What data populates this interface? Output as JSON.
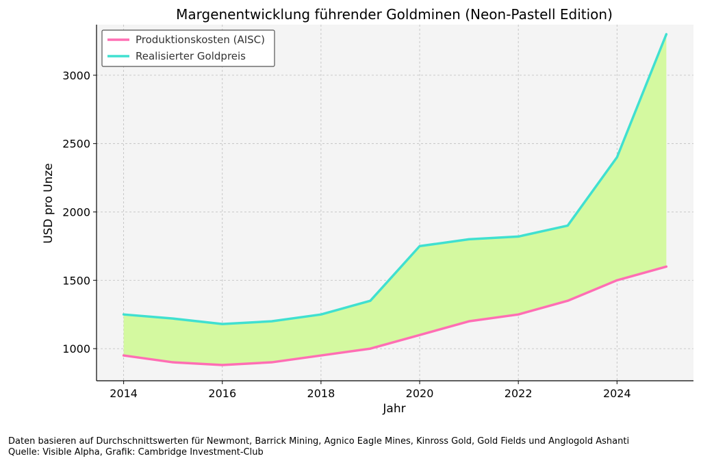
{
  "chart_data": {
    "type": "line",
    "title": "Margenentwicklung führender Goldminen (Neon-Pastell Edition)",
    "xlabel": "Jahr",
    "ylabel": "USD pro Unze",
    "x": [
      2014,
      2015,
      2016,
      2017,
      2018,
      2019,
      2020,
      2021,
      2022,
      2023,
      2024,
      2025
    ],
    "xticks": [
      2014,
      2016,
      2018,
      2020,
      2022,
      2024
    ],
    "yticks": [
      1000,
      1500,
      2000,
      2500,
      3000
    ],
    "xlim": [
      2013.45,
      2025.55
    ],
    "ylim": [
      765,
      3370
    ],
    "grid": true,
    "legend_position": "top-left",
    "fill_between": {
      "color": "#d4f9a0",
      "between": [
        "Produktionskosten (AISC)",
        "Realisierter Goldpreis"
      ]
    },
    "series": [
      {
        "name": "Produktionskosten (AISC)",
        "color": "#ff6eb4",
        "values": [
          950,
          900,
          880,
          900,
          950,
          1000,
          1100,
          1200,
          1250,
          1350,
          1500,
          1600
        ]
      },
      {
        "name": "Realisierter Goldpreis",
        "color": "#40e0d0",
        "values": [
          1250,
          1220,
          1180,
          1200,
          1250,
          1350,
          1750,
          1800,
          1820,
          1900,
          2400,
          3300
        ]
      }
    ]
  },
  "footnotes": {
    "line1": "Daten basieren auf Durchschnittswerten für Newmont, Barrick Mining, Agnico Eagle Mines, Kinross Gold, Gold Fields und Anglogold Ashanti",
    "line2": "Quelle: Visible Alpha, Grafik: Cambridge Investment-Club"
  }
}
